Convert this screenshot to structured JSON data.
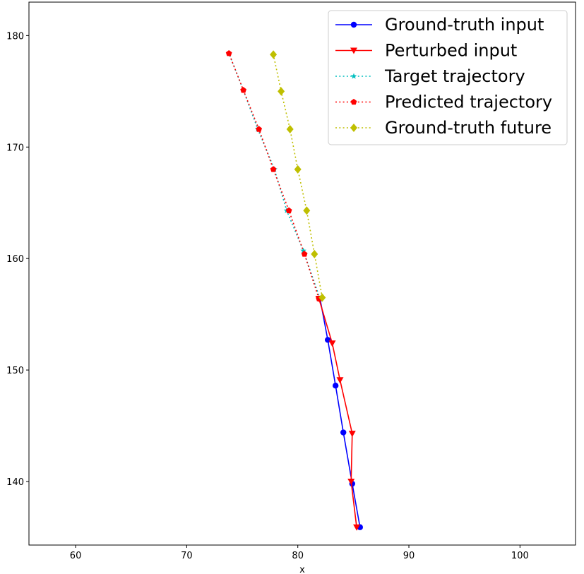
{
  "chart_data": {
    "type": "line",
    "title": "",
    "xlabel": "x",
    "ylabel": "",
    "xlim": [
      55.8,
      105.0
    ],
    "ylim": [
      134.3,
      183.0
    ],
    "xticks": [
      60,
      70,
      80,
      90,
      100
    ],
    "yticks": [
      140,
      150,
      160,
      170,
      180
    ],
    "grid": false,
    "legend_position": "top-right",
    "series": [
      {
        "name": "Ground-truth input",
        "color": "#0000ff",
        "linestyle": "solid",
        "marker": "circle",
        "x": [
          85.6,
          84.9,
          84.1,
          83.4,
          82.7,
          82.0
        ],
        "y": [
          135.9,
          139.8,
          144.4,
          148.6,
          152.7,
          156.4
        ]
      },
      {
        "name": "Perturbed input",
        "color": "#ff0000",
        "linestyle": "solid",
        "marker": "triangle-down",
        "x": [
          85.3,
          84.8,
          84.9,
          83.8,
          83.1,
          81.9
        ],
        "y": [
          135.9,
          140.0,
          144.3,
          149.1,
          152.4,
          156.4
        ]
      },
      {
        "name": "Target trajectory",
        "color": "#00bfbf",
        "linestyle": "dotted",
        "marker": "star",
        "x": [
          82.0,
          80.5,
          79.0,
          77.9,
          76.4,
          75.1,
          73.8
        ],
        "y": [
          156.4,
          160.7,
          164.3,
          168.0,
          171.6,
          175.1,
          178.4
        ]
      },
      {
        "name": "Predicted trajectory",
        "color": "#ff0000",
        "linestyle": "dotted",
        "marker": "pentagon",
        "x": [
          81.9,
          80.6,
          79.2,
          77.8,
          76.5,
          75.1,
          73.8
        ],
        "y": [
          156.4,
          160.4,
          164.3,
          168.0,
          171.6,
          175.1,
          178.4
        ]
      },
      {
        "name": "Ground-truth future",
        "color": "#bfbf00",
        "linestyle": "dotted",
        "marker": "diamond",
        "x": [
          82.2,
          81.5,
          80.8,
          80.0,
          79.3,
          78.5,
          77.8
        ],
        "y": [
          156.5,
          160.4,
          164.3,
          168.0,
          171.6,
          175.0,
          178.3
        ]
      }
    ]
  }
}
